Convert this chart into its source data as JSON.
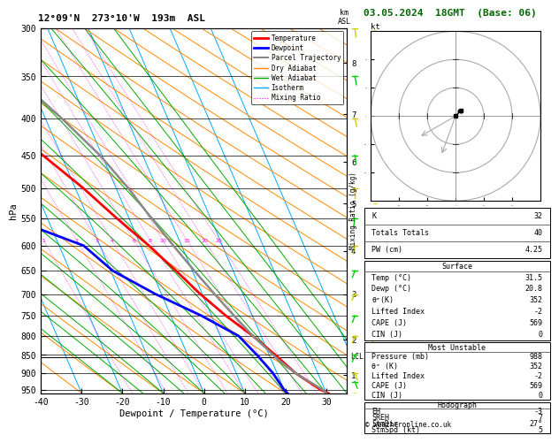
{
  "title_left": "12°09'N  273°10'W  193m  ASL",
  "title_right": "03.05.2024  18GMT  (Base: 06)",
  "xlabel": "Dewpoint / Temperature (°C)",
  "ylabel_left": "hPa",
  "p_min": 300,
  "p_max": 960,
  "t_min": -40,
  "t_max": 35,
  "skew_rate": 33.0,
  "background": "#ffffff",
  "temp_profile": {
    "pressure": [
      988,
      960,
      950,
      900,
      850,
      800,
      750,
      700,
      650,
      600,
      550,
      500,
      450,
      400,
      350,
      300
    ],
    "temp": [
      31.5,
      30.5,
      29.0,
      24.5,
      21.5,
      18.0,
      13.5,
      9.5,
      6.0,
      2.0,
      -3.0,
      -8.0,
      -14.5,
      -21.5,
      -30.5,
      -41.0
    ],
    "color": "#ff0000",
    "linewidth": 2.0
  },
  "dewp_profile": {
    "pressure": [
      988,
      960,
      950,
      900,
      850,
      800,
      750,
      700,
      650,
      600,
      550,
      500,
      450,
      400,
      350,
      300
    ],
    "temp": [
      20.8,
      20.5,
      20.0,
      19.0,
      17.0,
      14.5,
      7.5,
      -1.5,
      -9.5,
      -14.0,
      -29.0,
      -40.0,
      -46.0,
      -51.0,
      -56.0,
      -61.0
    ],
    "color": "#0000ff",
    "linewidth": 2.0
  },
  "parcel_profile": {
    "pressure": [
      988,
      960,
      950,
      900,
      860,
      850,
      800,
      750,
      700,
      650,
      600,
      550,
      500,
      450,
      400,
      350,
      300
    ],
    "temp": [
      31.5,
      30.0,
      29.5,
      24.5,
      21.5,
      21.0,
      18.0,
      15.5,
      13.0,
      10.5,
      8.0,
      5.5,
      3.0,
      -0.5,
      -6.0,
      -13.0,
      -22.0
    ],
    "color": "#888888",
    "linewidth": 1.8
  },
  "lcl_pressure": 855,
  "isotherm_color": "#00aaff",
  "dry_adiabat_color": "#ff8800",
  "wet_adiabat_color": "#00aa00",
  "mixing_ratio_color": "#ff00ff",
  "mixing_ratio_values": [
    1,
    2,
    3,
    4,
    6,
    8,
    10,
    15,
    20,
    25
  ],
  "mixing_ratio_label_pressure": 590,
  "pressure_ticks": [
    300,
    350,
    400,
    450,
    500,
    550,
    600,
    650,
    700,
    750,
    800,
    850,
    900,
    950
  ],
  "temp_ticks": [
    -40,
    -30,
    -20,
    -10,
    0,
    10,
    20,
    30
  ],
  "km_tick_pressures": [
    905,
    810,
    700,
    610,
    525,
    460,
    395,
    335
  ],
  "km_tick_labels": [
    "1",
    "2",
    "3",
    "4",
    "5",
    "6",
    "7",
    "8"
  ],
  "info_box": {
    "K": 32,
    "Totals_Totals": 40,
    "PW_cm": "4.25",
    "Surface_Temp": "31.5",
    "Surface_Dewp": "20.8",
    "Surface_theta_e": 352,
    "Surface_LI": -2,
    "Surface_CAPE": 569,
    "Surface_CIN": 0,
    "MU_Pressure": 988,
    "MU_theta_e": 352,
    "MU_LI": -2,
    "MU_CAPE": 569,
    "MU_CIN": 0,
    "EH": -3,
    "SREH": 7,
    "StmDir": "27°",
    "StmSpd_kt": 5
  },
  "legend_items": [
    {
      "label": "Temperature",
      "color": "#ff0000",
      "lw": 2.0,
      "ls": "solid"
    },
    {
      "label": "Dewpoint",
      "color": "#0000ff",
      "lw": 2.0,
      "ls": "solid"
    },
    {
      "label": "Parcel Trajectory",
      "color": "#888888",
      "lw": 1.5,
      "ls": "solid"
    },
    {
      "label": "Dry Adiabat",
      "color": "#ff8800",
      "lw": 1.0,
      "ls": "solid"
    },
    {
      "label": "Wet Adiabat",
      "color": "#00aa00",
      "lw": 1.0,
      "ls": "solid"
    },
    {
      "label": "Isotherm",
      "color": "#00aaff",
      "lw": 1.0,
      "ls": "solid"
    },
    {
      "label": "Mixing Ratio",
      "color": "#ff00ff",
      "lw": 0.8,
      "ls": "dotted"
    }
  ],
  "wind_barb_pressures": [
    960,
    925,
    900,
    850,
    800,
    750,
    700,
    650,
    600,
    550,
    500,
    450,
    400,
    350,
    300
  ],
  "wind_u_kt": [
    2,
    3,
    2,
    -2,
    -3,
    -4,
    -5,
    -4,
    -3,
    -2,
    0,
    2,
    3,
    3,
    2
  ],
  "wind_v_kt": [
    4,
    3,
    2,
    2,
    3,
    4,
    4,
    4,
    5,
    5,
    5,
    5,
    5,
    6,
    6
  ]
}
